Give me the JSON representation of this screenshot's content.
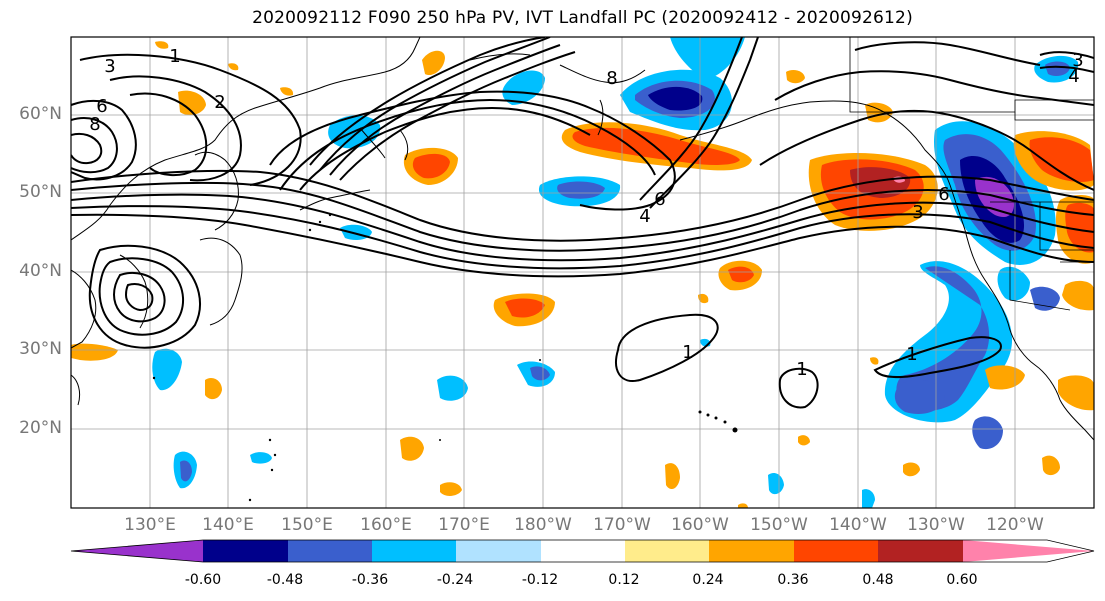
{
  "title": "2020092112 F090 250 hPa PV, IVT Landfall PC (2020092412 - 2020092612)",
  "lat_labels": [
    "60°N",
    "50°N",
    "40°N",
    "30°N",
    "20°N"
  ],
  "lon_labels": [
    "130°E",
    "140°E",
    "150°E",
    "160°E",
    "170°E",
    "180°W",
    "170°W",
    "160°W",
    "150°W",
    "140°W",
    "130°W",
    "120°W"
  ],
  "contour_labels": [
    "1",
    "1",
    "1",
    "1",
    "2",
    "3",
    "3",
    "3",
    "4",
    "4",
    "6",
    "6",
    "6",
    "8",
    "8"
  ],
  "colorbar": {
    "ticks": [
      "-0.60",
      "-0.48",
      "-0.36",
      "-0.24",
      "-0.12",
      "0.12",
      "0.24",
      "0.36",
      "0.48",
      "0.60"
    ],
    "colors": [
      "#9932cc",
      "#00008b",
      "#3a5fcd",
      "#00bfff",
      "#b0e2ff",
      "#ffffff",
      "#ffec8b",
      "#ffa500",
      "#ff4500",
      "#b22222",
      "#ff82ab"
    ]
  }
}
